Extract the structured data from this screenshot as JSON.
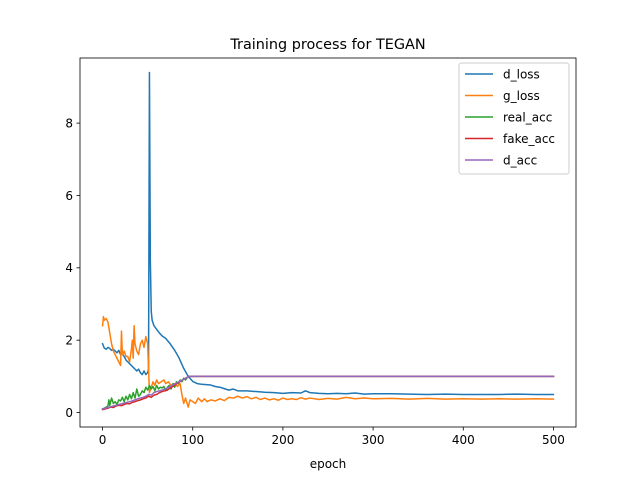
{
  "chart_data": {
    "type": "line",
    "title": "Training process for TEGAN",
    "xlabel": "epoch",
    "ylabel": "",
    "xlim": [
      -25,
      525
    ],
    "ylim": [
      -0.4,
      9.8
    ],
    "xticks": [
      0,
      100,
      200,
      300,
      400,
      500
    ],
    "yticks": [
      0,
      2,
      4,
      6,
      8
    ],
    "grid": false,
    "legend_position": "top-right",
    "series": [
      {
        "name": "d_loss",
        "color": "#1f77b4",
        "points": [
          [
            0,
            1.9
          ],
          [
            2,
            1.78
          ],
          [
            4,
            1.75
          ],
          [
            6,
            1.8
          ],
          [
            8,
            1.77
          ],
          [
            10,
            1.72
          ],
          [
            12,
            1.75
          ],
          [
            14,
            1.7
          ],
          [
            16,
            1.65
          ],
          [
            18,
            1.72
          ],
          [
            20,
            1.6
          ],
          [
            22,
            1.62
          ],
          [
            24,
            1.55
          ],
          [
            26,
            1.45
          ],
          [
            28,
            1.4
          ],
          [
            30,
            1.35
          ],
          [
            32,
            1.3
          ],
          [
            34,
            1.25
          ],
          [
            36,
            1.2
          ],
          [
            38,
            1.15
          ],
          [
            40,
            1.2
          ],
          [
            42,
            1.1
          ],
          [
            44,
            1.05
          ],
          [
            46,
            1.15
          ],
          [
            48,
            1.05
          ],
          [
            50,
            1.1
          ],
          [
            51,
            1.2
          ],
          [
            52,
            9.4
          ],
          [
            53,
            4.2
          ],
          [
            54,
            2.8
          ],
          [
            55,
            2.55
          ],
          [
            57,
            2.4
          ],
          [
            60,
            2.3
          ],
          [
            63,
            2.2
          ],
          [
            66,
            2.12
          ],
          [
            70,
            2.05
          ],
          [
            75,
            1.9
          ],
          [
            80,
            1.72
          ],
          [
            85,
            1.5
          ],
          [
            90,
            1.22
          ],
          [
            95,
            1.0
          ],
          [
            100,
            0.86
          ],
          [
            105,
            0.8
          ],
          [
            110,
            0.78
          ],
          [
            115,
            0.77
          ],
          [
            120,
            0.76
          ],
          [
            125,
            0.72
          ],
          [
            130,
            0.7
          ],
          [
            135,
            0.66
          ],
          [
            140,
            0.62
          ],
          [
            145,
            0.65
          ],
          [
            150,
            0.6
          ],
          [
            160,
            0.6
          ],
          [
            170,
            0.58
          ],
          [
            180,
            0.56
          ],
          [
            190,
            0.55
          ],
          [
            200,
            0.53
          ],
          [
            210,
            0.55
          ],
          [
            220,
            0.54
          ],
          [
            225,
            0.6
          ],
          [
            230,
            0.55
          ],
          [
            240,
            0.53
          ],
          [
            250,
            0.52
          ],
          [
            260,
            0.53
          ],
          [
            270,
            0.52
          ],
          [
            280,
            0.54
          ],
          [
            290,
            0.51
          ],
          [
            300,
            0.52
          ],
          [
            320,
            0.52
          ],
          [
            340,
            0.51
          ],
          [
            360,
            0.5
          ],
          [
            380,
            0.51
          ],
          [
            400,
            0.5
          ],
          [
            420,
            0.5
          ],
          [
            440,
            0.5
          ],
          [
            460,
            0.51
          ],
          [
            480,
            0.5
          ],
          [
            500,
            0.5
          ]
        ]
      },
      {
        "name": "g_loss",
        "color": "#ff7f0e",
        "points": [
          [
            0,
            2.4
          ],
          [
            1,
            2.65
          ],
          [
            2,
            2.55
          ],
          [
            4,
            2.6
          ],
          [
            6,
            2.5
          ],
          [
            8,
            2.2
          ],
          [
            10,
            1.9
          ],
          [
            12,
            1.7
          ],
          [
            14,
            1.6
          ],
          [
            16,
            1.5
          ],
          [
            18,
            1.4
          ],
          [
            20,
            1.3
          ],
          [
            21,
            2.25
          ],
          [
            22,
            1.6
          ],
          [
            24,
            1.7
          ],
          [
            26,
            1.55
          ],
          [
            28,
            1.55
          ],
          [
            30,
            1.4
          ],
          [
            32,
            1.75
          ],
          [
            33,
            2.0
          ],
          [
            34,
            1.5
          ],
          [
            35,
            2.4
          ],
          [
            36,
            1.9
          ],
          [
            38,
            1.7
          ],
          [
            40,
            1.6
          ],
          [
            42,
            1.9
          ],
          [
            44,
            2.0
          ],
          [
            46,
            1.8
          ],
          [
            48,
            2.1
          ],
          [
            50,
            1.9
          ],
          [
            52,
            0.55
          ],
          [
            54,
            0.7
          ],
          [
            56,
            0.85
          ],
          [
            58,
            0.75
          ],
          [
            60,
            0.9
          ],
          [
            62,
            0.8
          ],
          [
            65,
            0.85
          ],
          [
            68,
            0.9
          ],
          [
            70,
            0.8
          ],
          [
            73,
            0.85
          ],
          [
            76,
            0.75
          ],
          [
            80,
            0.8
          ],
          [
            83,
            0.72
          ],
          [
            86,
            0.8
          ],
          [
            88,
            0.5
          ],
          [
            90,
            0.25
          ],
          [
            92,
            0.4
          ],
          [
            95,
            0.15
          ],
          [
            97,
            0.35
          ],
          [
            100,
            0.3
          ],
          [
            103,
            0.25
          ],
          [
            106,
            0.4
          ],
          [
            110,
            0.3
          ],
          [
            113,
            0.38
          ],
          [
            116,
            0.3
          ],
          [
            120,
            0.35
          ],
          [
            125,
            0.32
          ],
          [
            130,
            0.38
          ],
          [
            135,
            0.33
          ],
          [
            140,
            0.42
          ],
          [
            145,
            0.4
          ],
          [
            150,
            0.45
          ],
          [
            155,
            0.4
          ],
          [
            160,
            0.44
          ],
          [
            165,
            0.38
          ],
          [
            170,
            0.42
          ],
          [
            175,
            0.36
          ],
          [
            180,
            0.4
          ],
          [
            185,
            0.35
          ],
          [
            190,
            0.38
          ],
          [
            195,
            0.34
          ],
          [
            200,
            0.4
          ],
          [
            205,
            0.36
          ],
          [
            210,
            0.38
          ],
          [
            215,
            0.36
          ],
          [
            220,
            0.41
          ],
          [
            225,
            0.37
          ],
          [
            230,
            0.4
          ],
          [
            240,
            0.36
          ],
          [
            250,
            0.39
          ],
          [
            260,
            0.37
          ],
          [
            270,
            0.42
          ],
          [
            280,
            0.38
          ],
          [
            290,
            0.4
          ],
          [
            300,
            0.38
          ],
          [
            320,
            0.39
          ],
          [
            340,
            0.37
          ],
          [
            360,
            0.39
          ],
          [
            380,
            0.37
          ],
          [
            400,
            0.38
          ],
          [
            420,
            0.37
          ],
          [
            440,
            0.38
          ],
          [
            460,
            0.37
          ],
          [
            480,
            0.38
          ],
          [
            500,
            0.37
          ]
        ]
      },
      {
        "name": "real_acc",
        "color": "#2ca02c",
        "points": [
          [
            0,
            0.1
          ],
          [
            2,
            0.12
          ],
          [
            4,
            0.15
          ],
          [
            6,
            0.18
          ],
          [
            7,
            0.35
          ],
          [
            8,
            0.2
          ],
          [
            10,
            0.4
          ],
          [
            12,
            0.25
          ],
          [
            14,
            0.3
          ],
          [
            16,
            0.22
          ],
          [
            18,
            0.35
          ],
          [
            20,
            0.32
          ],
          [
            22,
            0.42
          ],
          [
            24,
            0.3
          ],
          [
            26,
            0.45
          ],
          [
            28,
            0.35
          ],
          [
            30,
            0.5
          ],
          [
            32,
            0.38
          ],
          [
            34,
            0.55
          ],
          [
            36,
            0.4
          ],
          [
            38,
            0.65
          ],
          [
            40,
            0.45
          ],
          [
            42,
            0.5
          ],
          [
            44,
            0.6
          ],
          [
            46,
            0.55
          ],
          [
            48,
            0.7
          ],
          [
            50,
            0.62
          ],
          [
            52,
            0.75
          ],
          [
            54,
            0.65
          ],
          [
            56,
            0.72
          ],
          [
            58,
            0.6
          ],
          [
            60,
            0.75
          ],
          [
            62,
            0.65
          ],
          [
            64,
            0.7
          ],
          [
            66,
            0.68
          ],
          [
            68,
            0.72
          ],
          [
            70,
            0.6
          ],
          [
            72,
            0.7
          ],
          [
            74,
            0.75
          ],
          [
            76,
            0.65
          ],
          [
            78,
            0.8
          ],
          [
            80,
            0.7
          ],
          [
            82,
            0.85
          ],
          [
            84,
            0.8
          ],
          [
            86,
            0.9
          ],
          [
            88,
            0.85
          ],
          [
            90,
            0.95
          ],
          [
            92,
            0.9
          ],
          [
            94,
            0.97
          ],
          [
            96,
            1.0
          ],
          [
            100,
            1.0
          ],
          [
            500,
            1.0
          ]
        ]
      },
      {
        "name": "fake_acc",
        "color": "#d62728",
        "points": [
          [
            0,
            0.08
          ],
          [
            3,
            0.1
          ],
          [
            6,
            0.12
          ],
          [
            9,
            0.15
          ],
          [
            12,
            0.14
          ],
          [
            15,
            0.18
          ],
          [
            18,
            0.2
          ],
          [
            21,
            0.19
          ],
          [
            24,
            0.22
          ],
          [
            27,
            0.25
          ],
          [
            30,
            0.24
          ],
          [
            33,
            0.28
          ],
          [
            36,
            0.3
          ],
          [
            39,
            0.33
          ],
          [
            42,
            0.35
          ],
          [
            45,
            0.38
          ],
          [
            48,
            0.4
          ],
          [
            51,
            0.45
          ],
          [
            54,
            0.42
          ],
          [
            57,
            0.48
          ],
          [
            60,
            0.5
          ],
          [
            63,
            0.55
          ],
          [
            66,
            0.58
          ],
          [
            69,
            0.6
          ],
          [
            72,
            0.62
          ],
          [
            75,
            0.68
          ],
          [
            78,
            0.72
          ],
          [
            81,
            0.78
          ],
          [
            84,
            0.82
          ],
          [
            87,
            0.88
          ],
          [
            90,
            0.92
          ],
          [
            93,
            0.96
          ],
          [
            96,
            1.0
          ],
          [
            100,
            1.0
          ],
          [
            500,
            1.0
          ]
        ]
      },
      {
        "name": "d_acc",
        "color": "#9467bd",
        "points": [
          [
            0,
            0.1
          ],
          [
            3,
            0.12
          ],
          [
            6,
            0.14
          ],
          [
            9,
            0.16
          ],
          [
            12,
            0.18
          ],
          [
            15,
            0.2
          ],
          [
            18,
            0.22
          ],
          [
            21,
            0.24
          ],
          [
            24,
            0.26
          ],
          [
            27,
            0.28
          ],
          [
            30,
            0.3
          ],
          [
            33,
            0.32
          ],
          [
            36,
            0.35
          ],
          [
            39,
            0.38
          ],
          [
            42,
            0.4
          ],
          [
            45,
            0.42
          ],
          [
            48,
            0.45
          ],
          [
            51,
            0.5
          ],
          [
            54,
            0.48
          ],
          [
            57,
            0.55
          ],
          [
            60,
            0.58
          ],
          [
            63,
            0.6
          ],
          [
            66,
            0.62
          ],
          [
            69,
            0.65
          ],
          [
            72,
            0.68
          ],
          [
            75,
            0.72
          ],
          [
            78,
            0.76
          ],
          [
            81,
            0.8
          ],
          [
            84,
            0.84
          ],
          [
            87,
            0.88
          ],
          [
            90,
            0.92
          ],
          [
            93,
            0.96
          ],
          [
            96,
            1.0
          ],
          [
            100,
            1.0
          ],
          [
            500,
            1.0
          ]
        ]
      }
    ]
  }
}
